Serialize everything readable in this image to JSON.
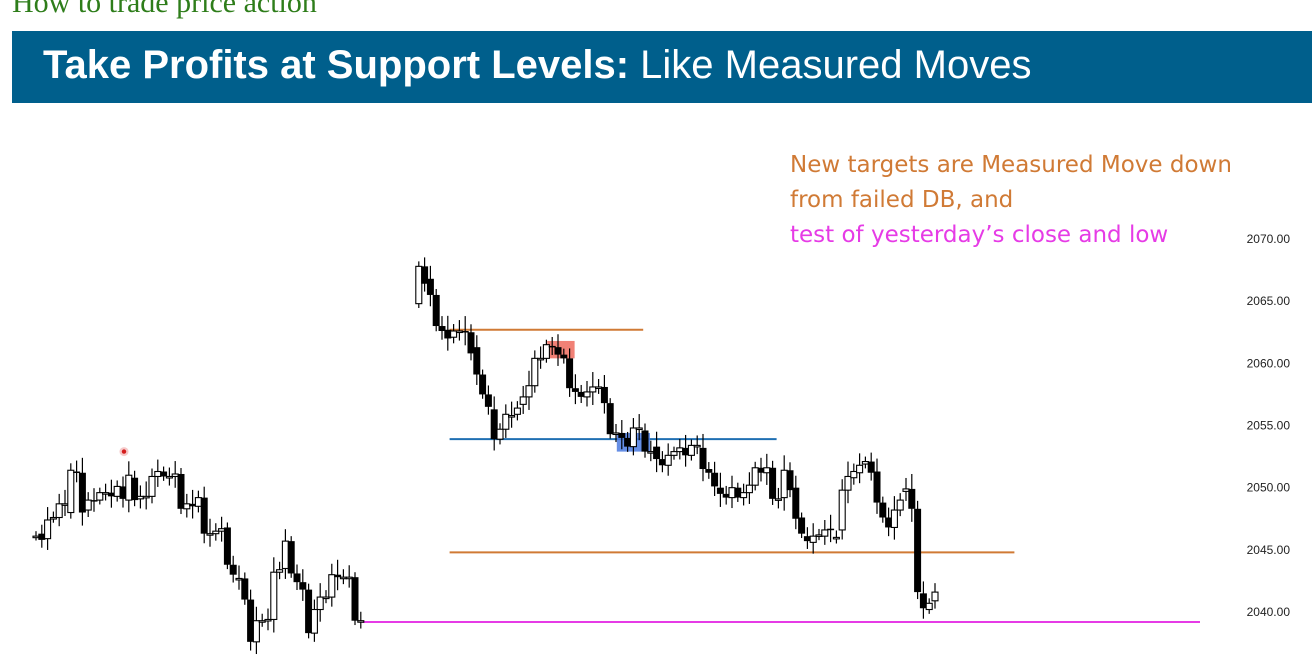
{
  "page_heading": "How to trade price action",
  "banner": {
    "title_bold": "Take Profits at Support Levels:",
    "title_regular": " Like Measured Moves"
  },
  "colors": {
    "banner": "#005f8c",
    "heading_green": "#2e7d1a",
    "orange": "#d07a35",
    "magenta": "#e63be6",
    "blue": "#1f6fb2",
    "red_highlight": "#ef6b5e",
    "blue_highlight": "#4a7ae0"
  },
  "chart_data": {
    "type": "candlestick",
    "annotations": {
      "orange": [
        "New targets are Measured Move down",
        "from failed DB, and"
      ],
      "magenta": [
        "test of yesterday’s close and low"
      ]
    },
    "y_axis": {
      "side": "right",
      "ticks": [
        "2070.00",
        "2065.00",
        "2060.00",
        "2055.00",
        "2050.00",
        "2045.00",
        "2040.00"
      ],
      "tick_values": [
        2070,
        2065,
        2060,
        2055,
        2050,
        2045,
        2040
      ],
      "range": [
        2034.5,
        2073
      ]
    },
    "grid": false,
    "levels": [
      {
        "name": "double bottom top",
        "color": "orange",
        "price": 2062.7,
        "from_bar": 72,
        "to_bar": 104
      },
      {
        "name": "double bottom support",
        "color": "blue",
        "price": 2053.9,
        "from_bar": 72,
        "to_bar": 127
      },
      {
        "name": "measured move target",
        "color": "orange",
        "price": 2044.8,
        "from_bar": 72,
        "to_bar": 168
      },
      {
        "name": "yesterday close",
        "color": "magenta",
        "price": 2039.2,
        "from_bar": 57,
        "to_bar": 200
      }
    ],
    "highlights": [
      {
        "color": "red",
        "bars": [
          89,
          92
        ],
        "price_top": 2061.8,
        "price_bottom": 2060.4
      },
      {
        "color": "blue",
        "bars": [
          101,
          105
        ],
        "price_top": 2054.4,
        "price_bottom": 2052.9
      }
    ],
    "marker": {
      "color": "red",
      "bar": 15,
      "price": 2052.9
    },
    "candles": [
      {
        "segment": "yesterday",
        "start_bar": 0,
        "bars": [
          {
            "o": 2046.1,
            "c": 2046.1
          },
          {
            "o": 2046.3,
            "c": 2045.8
          },
          {
            "o": 2045.9,
            "c": 2047.4
          },
          {
            "o": 2047.6,
            "c": 2047.6
          },
          {
            "o": 2047.6,
            "c": 2048.7
          },
          {
            "o": 2048.7,
            "c": 2048.7
          },
          {
            "o": 2048.0,
            "c": 2051.4
          },
          {
            "o": 2051.3,
            "c": 2051.2
          },
          {
            "o": 2051.2,
            "c": 2048.0
          },
          {
            "o": 2048.2,
            "c": 2049.0
          },
          {
            "o": 2049.0,
            "c": 2048.9
          },
          {
            "o": 2049.0,
            "c": 2049.6
          },
          {
            "o": 2049.6,
            "c": 2049.6
          },
          {
            "o": 2049.6,
            "c": 2049.3
          },
          {
            "o": 2049.3,
            "c": 2050.1
          },
          {
            "o": 2050.1,
            "c": 2049.1
          },
          {
            "o": 2049.0,
            "c": 2051.0
          },
          {
            "o": 2050.8,
            "c": 2049.0
          },
          {
            "o": 2049.1,
            "c": 2049.3
          },
          {
            "o": 2049.3,
            "c": 2049.3
          },
          {
            "o": 2049.3,
            "c": 2050.9
          },
          {
            "o": 2050.9,
            "c": 2051.3
          },
          {
            "o": 2051.3,
            "c": 2050.9
          },
          {
            "o": 2050.8,
            "c": 2050.9
          },
          {
            "o": 2050.9,
            "c": 2051.1
          },
          {
            "o": 2051.1,
            "c": 2048.3
          },
          {
            "o": 2048.3,
            "c": 2048.7
          },
          {
            "o": 2048.7,
            "c": 2048.5
          },
          {
            "o": 2048.5,
            "c": 2049.2
          },
          {
            "o": 2049.2,
            "c": 2046.3
          },
          {
            "o": 2046.3,
            "c": 2046.3
          },
          {
            "o": 2046.3,
            "c": 2046.5
          },
          {
            "o": 2046.5,
            "c": 2046.7
          },
          {
            "o": 2046.8,
            "c": 2043.8
          },
          {
            "o": 2043.8,
            "c": 2043.0
          },
          {
            "o": 2042.7,
            "c": 2042.7
          },
          {
            "o": 2042.7,
            "c": 2041.0
          },
          {
            "o": 2041.0,
            "c": 2037.6
          },
          {
            "o": 2037.6,
            "c": 2039.3
          },
          {
            "o": 2039.3,
            "c": 2039.3
          },
          {
            "o": 2039.3,
            "c": 2039.4
          },
          {
            "o": 2039.4,
            "c": 2043.2
          },
          {
            "o": 2043.2,
            "c": 2043.4
          },
          {
            "o": 2043.5,
            "c": 2045.7
          },
          {
            "o": 2045.7,
            "c": 2043.1
          },
          {
            "o": 2043.1,
            "c": 2042.4
          },
          {
            "o": 2042.4,
            "c": 2041.8
          },
          {
            "o": 2041.8,
            "c": 2038.3
          },
          {
            "o": 2038.3,
            "c": 2040.2
          },
          {
            "o": 2040.2,
            "c": 2041.2
          },
          {
            "o": 2041.2,
            "c": 2041.2
          },
          {
            "o": 2041.2,
            "c": 2043.0
          },
          {
            "o": 2043.0,
            "c": 2042.8
          },
          {
            "o": 2042.8,
            "c": 2042.8
          },
          {
            "o": 2042.8,
            "c": 2042.8
          },
          {
            "o": 2042.8,
            "c": 2039.3
          },
          {
            "o": 2039.3,
            "c": 2039.3
          }
        ]
      },
      {
        "segment": "today",
        "start_bar": 66,
        "bars": [
          {
            "o": 2064.8,
            "c": 2067.8
          },
          {
            "o": 2067.8,
            "c": 2066.4
          },
          {
            "o": 2066.8,
            "c": 2065.5
          },
          {
            "o": 2065.5,
            "c": 2063.0
          },
          {
            "o": 2063.0,
            "c": 2062.6
          },
          {
            "o": 2062.7,
            "c": 2062.0
          },
          {
            "o": 2062.1,
            "c": 2062.6
          },
          {
            "o": 2062.6,
            "c": 2062.6
          },
          {
            "o": 2062.6,
            "c": 2062.5
          },
          {
            "o": 2062.5,
            "c": 2060.8
          },
          {
            "o": 2061.3,
            "c": 2059.1
          },
          {
            "o": 2059.1,
            "c": 2057.5
          },
          {
            "o": 2057.5,
            "c": 2056.5
          },
          {
            "o": 2056.3,
            "c": 2053.9
          },
          {
            "o": 2053.9,
            "c": 2054.7
          },
          {
            "o": 2054.7,
            "c": 2055.9
          },
          {
            "o": 2055.8,
            "c": 2055.8
          },
          {
            "o": 2055.9,
            "c": 2056.4
          },
          {
            "o": 2056.7,
            "c": 2057.3
          },
          {
            "o": 2057.3,
            "c": 2058.2
          },
          {
            "o": 2058.2,
            "c": 2060.4
          },
          {
            "o": 2060.4,
            "c": 2060.4
          },
          {
            "o": 2060.4,
            "c": 2061.5
          },
          {
            "o": 2061.4,
            "c": 2061.3
          },
          {
            "o": 2061.3,
            "c": 2060.7
          },
          {
            "o": 2060.7,
            "c": 2060.4
          },
          {
            "o": 2060.4,
            "c": 2058.0
          },
          {
            "o": 2058.0,
            "c": 2057.7
          },
          {
            "o": 2057.7,
            "c": 2057.3
          },
          {
            "o": 2057.3,
            "c": 2057.7
          },
          {
            "o": 2057.7,
            "c": 2058.1
          },
          {
            "o": 2058.1,
            "c": 2058.1
          },
          {
            "o": 2058.1,
            "c": 2056.8
          },
          {
            "o": 2056.8,
            "c": 2054.3
          },
          {
            "o": 2054.3,
            "c": 2054.4
          },
          {
            "o": 2054.4,
            "c": 2054.0
          },
          {
            "o": 2054.0,
            "c": 2053.3
          },
          {
            "o": 2053.3,
            "c": 2054.8
          },
          {
            "o": 2054.8,
            "c": 2054.8
          },
          {
            "o": 2054.6,
            "c": 2052.9
          },
          {
            "o": 2052.9,
            "c": 2052.9
          },
          {
            "o": 2053.3,
            "c": 2052.3
          },
          {
            "o": 2052.3,
            "c": 2051.8
          },
          {
            "o": 2051.8,
            "c": 2052.6
          },
          {
            "o": 2052.6,
            "c": 2052.9
          },
          {
            "o": 2052.9,
            "c": 2053.2
          },
          {
            "o": 2053.2,
            "c": 2052.6
          },
          {
            "o": 2052.6,
            "c": 2053.4
          },
          {
            "o": 2053.4,
            "c": 2053.4
          },
          {
            "o": 2053.2,
            "c": 2051.5
          },
          {
            "o": 2051.5,
            "c": 2051.2
          },
          {
            "o": 2051.2,
            "c": 2050.1
          },
          {
            "o": 2050.0,
            "c": 2049.5
          },
          {
            "o": 2049.5,
            "c": 2049.2
          },
          {
            "o": 2049.2,
            "c": 2050.0
          },
          {
            "o": 2050.0,
            "c": 2049.2
          },
          {
            "o": 2049.2,
            "c": 2049.6
          },
          {
            "o": 2049.6,
            "c": 2050.2
          },
          {
            "o": 2050.2,
            "c": 2051.6
          },
          {
            "o": 2051.6,
            "c": 2051.2
          },
          {
            "o": 2051.2,
            "c": 2051.6
          },
          {
            "o": 2051.6,
            "c": 2049.1
          },
          {
            "o": 2049.1,
            "c": 2049.1
          },
          {
            "o": 2049.2,
            "c": 2051.4
          },
          {
            "o": 2051.4,
            "c": 2049.8
          },
          {
            "o": 2050.0,
            "c": 2047.5
          },
          {
            "o": 2047.6,
            "c": 2046.3
          },
          {
            "o": 2046.1,
            "c": 2045.7
          },
          {
            "o": 2045.6,
            "c": 2046.1
          },
          {
            "o": 2046.2,
            "c": 2046.2
          },
          {
            "o": 2046.1,
            "c": 2046.6
          },
          {
            "o": 2046.7,
            "c": 2046.6
          },
          {
            "o": 2046.0,
            "c": 2046.0
          },
          {
            "o": 2046.6,
            "c": 2049.8
          },
          {
            "o": 2049.8,
            "c": 2050.9
          },
          {
            "o": 2050.8,
            "c": 2051.3
          },
          {
            "o": 2051.2,
            "c": 2051.8
          },
          {
            "o": 2051.9,
            "c": 2052.1
          },
          {
            "o": 2052.1,
            "c": 2051.2
          },
          {
            "o": 2051.3,
            "c": 2048.8
          },
          {
            "o": 2048.8,
            "c": 2047.6
          },
          {
            "o": 2047.6,
            "c": 2046.8
          },
          {
            "o": 2046.8,
            "c": 2048.2
          },
          {
            "o": 2048.2,
            "c": 2049.0
          },
          {
            "o": 2049.7,
            "c": 2049.9
          },
          {
            "o": 2049.9,
            "c": 2048.3
          },
          {
            "o": 2048.3,
            "c": 2041.6
          },
          {
            "o": 2041.5,
            "c": 2040.3
          },
          {
            "o": 2040.2,
            "c": 2040.7
          },
          {
            "o": 2040.9,
            "c": 2041.6
          }
        ]
      }
    ]
  }
}
